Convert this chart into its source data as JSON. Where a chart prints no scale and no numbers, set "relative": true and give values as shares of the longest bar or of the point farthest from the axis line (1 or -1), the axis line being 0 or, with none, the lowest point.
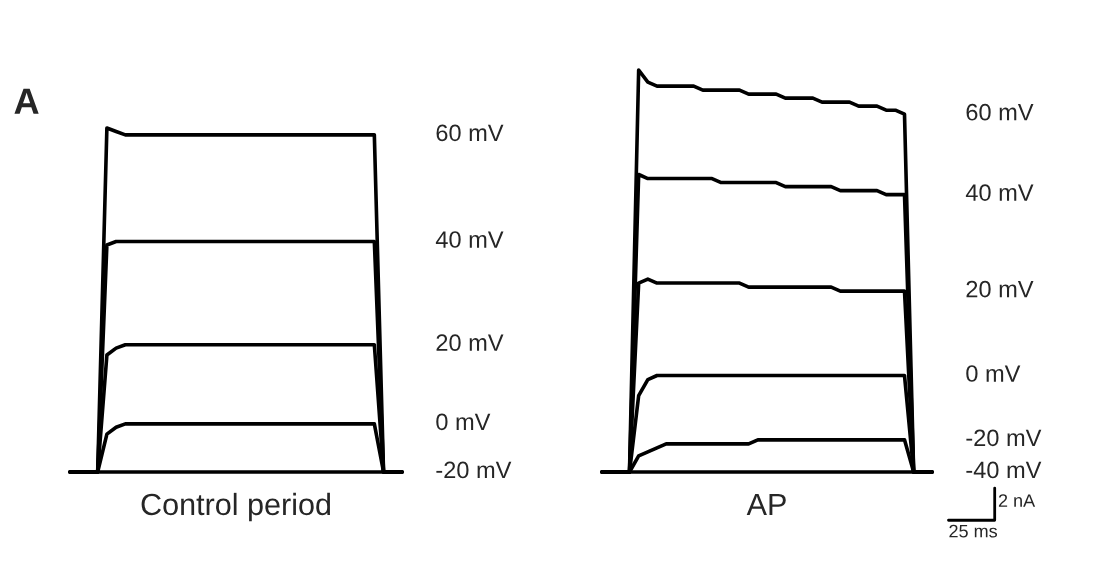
{
  "chart_data": [
    {
      "type": "line",
      "relative": true,
      "xlabel": "Control period",
      "annotations": [
        "A"
      ],
      "categories": [
        null,
        null,
        null,
        null,
        null,
        null,
        null,
        null,
        null,
        null,
        null,
        null,
        null,
        null,
        null,
        null,
        null,
        null,
        null,
        null,
        null,
        null,
        null,
        null,
        null,
        null,
        null,
        null,
        null,
        null,
        null,
        null,
        null,
        null,
        null,
        null,
        null
      ],
      "series": [
        {
          "name": "60 mV",
          "color": "#000000",
          "values": [
            0,
            0,
            0,
            0,
            1.0,
            0.99,
            0.98,
            0.98,
            0.98,
            0.98,
            0.98,
            0.98,
            0.98,
            0.98,
            0.98,
            0.98,
            0.98,
            0.98,
            0.98,
            0.98,
            0.98,
            0.98,
            0.98,
            0.98,
            0.98,
            0.98,
            0.98,
            0.98,
            0.98,
            0.98,
            0.98,
            0.98,
            0.98,
            0.98,
            0,
            0,
            0
          ]
        },
        {
          "name": "40 mV",
          "color": "#000000",
          "values": [
            0,
            0,
            0,
            0,
            0.66,
            0.67,
            0.67,
            0.67,
            0.67,
            0.67,
            0.67,
            0.67,
            0.67,
            0.67,
            0.67,
            0.67,
            0.67,
            0.67,
            0.67,
            0.67,
            0.67,
            0.67,
            0.67,
            0.67,
            0.67,
            0.67,
            0.67,
            0.67,
            0.67,
            0.67,
            0.67,
            0.67,
            0.67,
            0.67,
            0,
            0,
            0
          ]
        },
        {
          "name": "20 mV",
          "color": "#000000",
          "values": [
            0,
            0,
            0,
            0,
            0.34,
            0.36,
            0.37,
            0.37,
            0.37,
            0.37,
            0.37,
            0.37,
            0.37,
            0.37,
            0.37,
            0.37,
            0.37,
            0.37,
            0.37,
            0.37,
            0.37,
            0.37,
            0.37,
            0.37,
            0.37,
            0.37,
            0.37,
            0.37,
            0.37,
            0.37,
            0.37,
            0.37,
            0.37,
            0.37,
            0,
            0,
            0
          ]
        },
        {
          "name": "0 mV",
          "color": "#000000",
          "values": [
            0,
            0,
            0,
            0,
            0.11,
            0.13,
            0.14,
            0.14,
            0.14,
            0.14,
            0.14,
            0.14,
            0.14,
            0.14,
            0.14,
            0.14,
            0.14,
            0.14,
            0.14,
            0.14,
            0.14,
            0.14,
            0.14,
            0.14,
            0.14,
            0.14,
            0.14,
            0.14,
            0.14,
            0.14,
            0.14,
            0.14,
            0.14,
            0.14,
            0,
            0,
            0
          ]
        },
        {
          "name": "-20 mV",
          "color": "#000000",
          "values": [
            0,
            0,
            0,
            0,
            0,
            0,
            0,
            0,
            0,
            0,
            0,
            0,
            0,
            0,
            0,
            0,
            0,
            0,
            0,
            0,
            0,
            0,
            0,
            0,
            0,
            0,
            0,
            0,
            0,
            0,
            0,
            0,
            0,
            0,
            0,
            0,
            0
          ]
        }
      ]
    },
    {
      "type": "line",
      "relative": true,
      "xlabel": "AP",
      "annotations": [
        "2 nA",
        "25 ms"
      ],
      "categories": [
        null,
        null,
        null,
        null,
        null,
        null,
        null,
        null,
        null,
        null,
        null,
        null,
        null,
        null,
        null,
        null,
        null,
        null,
        null,
        null,
        null,
        null,
        null,
        null,
        null,
        null,
        null,
        null,
        null,
        null,
        null,
        null,
        null,
        null,
        null,
        null,
        null
      ],
      "series": [
        {
          "name": "60 mV",
          "color": "#000000",
          "values": [
            0,
            0,
            0,
            0,
            1.0,
            0.97,
            0.96,
            0.96,
            0.96,
            0.96,
            0.96,
            0.95,
            0.95,
            0.95,
            0.95,
            0.95,
            0.94,
            0.94,
            0.94,
            0.94,
            0.93,
            0.93,
            0.93,
            0.93,
            0.92,
            0.92,
            0.92,
            0.92,
            0.91,
            0.91,
            0.91,
            0.9,
            0.9,
            0.89,
            0,
            0,
            0
          ]
        },
        {
          "name": "40 mV",
          "color": "#000000",
          "values": [
            0,
            0,
            0,
            0,
            0.74,
            0.73,
            0.73,
            0.73,
            0.73,
            0.73,
            0.73,
            0.73,
            0.73,
            0.72,
            0.72,
            0.72,
            0.72,
            0.72,
            0.72,
            0.72,
            0.71,
            0.71,
            0.71,
            0.71,
            0.71,
            0.71,
            0.7,
            0.7,
            0.7,
            0.7,
            0.7,
            0.69,
            0.69,
            0.69,
            0,
            0,
            0
          ]
        },
        {
          "name": "20 mV",
          "color": "#000000",
          "values": [
            0,
            0,
            0,
            0,
            0.47,
            0.48,
            0.47,
            0.47,
            0.47,
            0.47,
            0.47,
            0.47,
            0.47,
            0.47,
            0.47,
            0.47,
            0.46,
            0.46,
            0.46,
            0.46,
            0.46,
            0.46,
            0.46,
            0.46,
            0.46,
            0.46,
            0.45,
            0.45,
            0.45,
            0.45,
            0.45,
            0.45,
            0.45,
            0.45,
            0,
            0,
            0
          ]
        },
        {
          "name": "0 mV",
          "color": "#000000",
          "values": [
            0,
            0,
            0,
            0,
            0.19,
            0.23,
            0.24,
            0.24,
            0.24,
            0.24,
            0.24,
            0.24,
            0.24,
            0.24,
            0.24,
            0.24,
            0.24,
            0.24,
            0.24,
            0.24,
            0.24,
            0.24,
            0.24,
            0.24,
            0.24,
            0.24,
            0.24,
            0.24,
            0.24,
            0.24,
            0.24,
            0.24,
            0.24,
            0.24,
            0,
            0,
            0
          ]
        },
        {
          "name": "-20 mV",
          "color": "#000000",
          "values": [
            0,
            0,
            0,
            0,
            0.04,
            0.05,
            0.06,
            0.07,
            0.07,
            0.07,
            0.07,
            0.07,
            0.07,
            0.07,
            0.07,
            0.07,
            0.07,
            0.08,
            0.08,
            0.08,
            0.08,
            0.08,
            0.08,
            0.08,
            0.08,
            0.08,
            0.08,
            0.08,
            0.08,
            0.08,
            0.08,
            0.08,
            0.08,
            0.08,
            0,
            0,
            0
          ]
        },
        {
          "name": "-40 mV",
          "color": "#000000",
          "values": [
            0,
            0,
            0,
            0,
            0,
            0,
            0,
            0,
            0,
            0,
            0,
            0,
            0,
            0,
            0,
            0,
            0,
            0,
            0,
            0,
            0,
            0,
            0,
            0,
            0,
            0,
            0,
            0,
            0,
            0,
            0,
            0,
            0,
            0,
            0,
            0,
            0
          ]
        }
      ]
    }
  ]
}
